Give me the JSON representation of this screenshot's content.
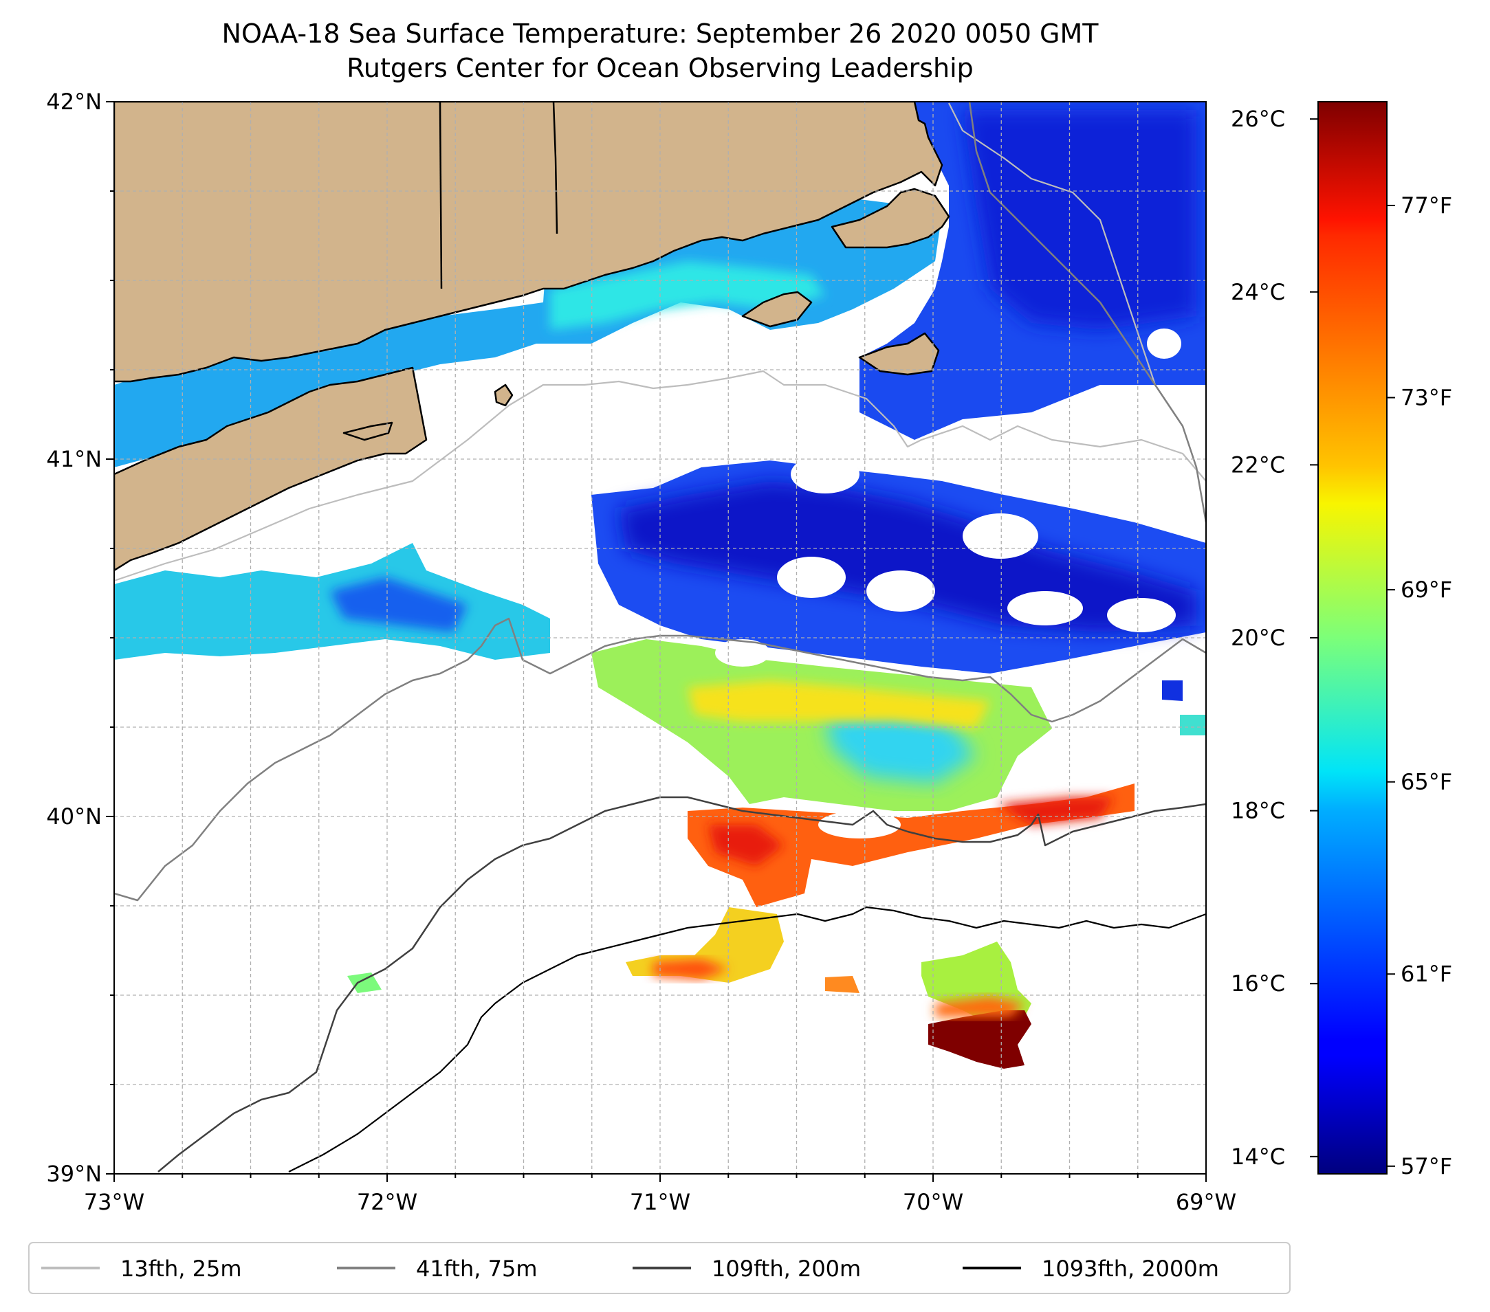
{
  "title": {
    "line1": "NOAA-18 Sea Surface Temperature: September 26 2020 0050 GMT",
    "line2": "Rutgers Center for Ocean Observing Leadership"
  },
  "map": {
    "lon_range": [
      -73,
      -69
    ],
    "lat_range": [
      39,
      42
    ],
    "x_ticks": [
      {
        "lon": -73,
        "label": "73°W"
      },
      {
        "lon": -72,
        "label": "72°W"
      },
      {
        "lon": -71,
        "label": "71°W"
      },
      {
        "lon": -70,
        "label": "70°W"
      },
      {
        "lon": -69,
        "label": "69°W"
      }
    ],
    "y_ticks": [
      {
        "lat": 42,
        "label": "42°N"
      },
      {
        "lat": 41,
        "label": "41°N"
      },
      {
        "lat": 40,
        "label": "40°N"
      },
      {
        "lat": 39,
        "label": "39°N"
      }
    ],
    "grid": true,
    "land_color": "#d2b48c"
  },
  "colorbar": {
    "colormap": "jet",
    "range_c": [
      13.8,
      26.2
    ],
    "celsius_ticks": [
      {
        "value": 26,
        "label": "26°C"
      },
      {
        "value": 24,
        "label": "24°C"
      },
      {
        "value": 22,
        "label": "22°C"
      },
      {
        "value": 20,
        "label": "20°C"
      },
      {
        "value": 18,
        "label": "18°C"
      },
      {
        "value": 16,
        "label": "16°C"
      },
      {
        "value": 14,
        "label": "14°C"
      }
    ],
    "fahrenheit_ticks": [
      {
        "value": 77,
        "label": "77°F"
      },
      {
        "value": 73,
        "label": "73°F"
      },
      {
        "value": 69,
        "label": "69°F"
      },
      {
        "value": 65,
        "label": "65°F"
      },
      {
        "value": 61,
        "label": "61°F"
      },
      {
        "value": 57,
        "label": "57°F"
      }
    ]
  },
  "legend": {
    "placement": "bottom",
    "items": [
      {
        "label": "13fth, 25m",
        "color": "#bdbdbd"
      },
      {
        "label": "41fth, 75m",
        "color": "#808080"
      },
      {
        "label": "109fth, 200m",
        "color": "#404040"
      },
      {
        "label": "1093fth, 2000m",
        "color": "#000000"
      }
    ]
  }
}
